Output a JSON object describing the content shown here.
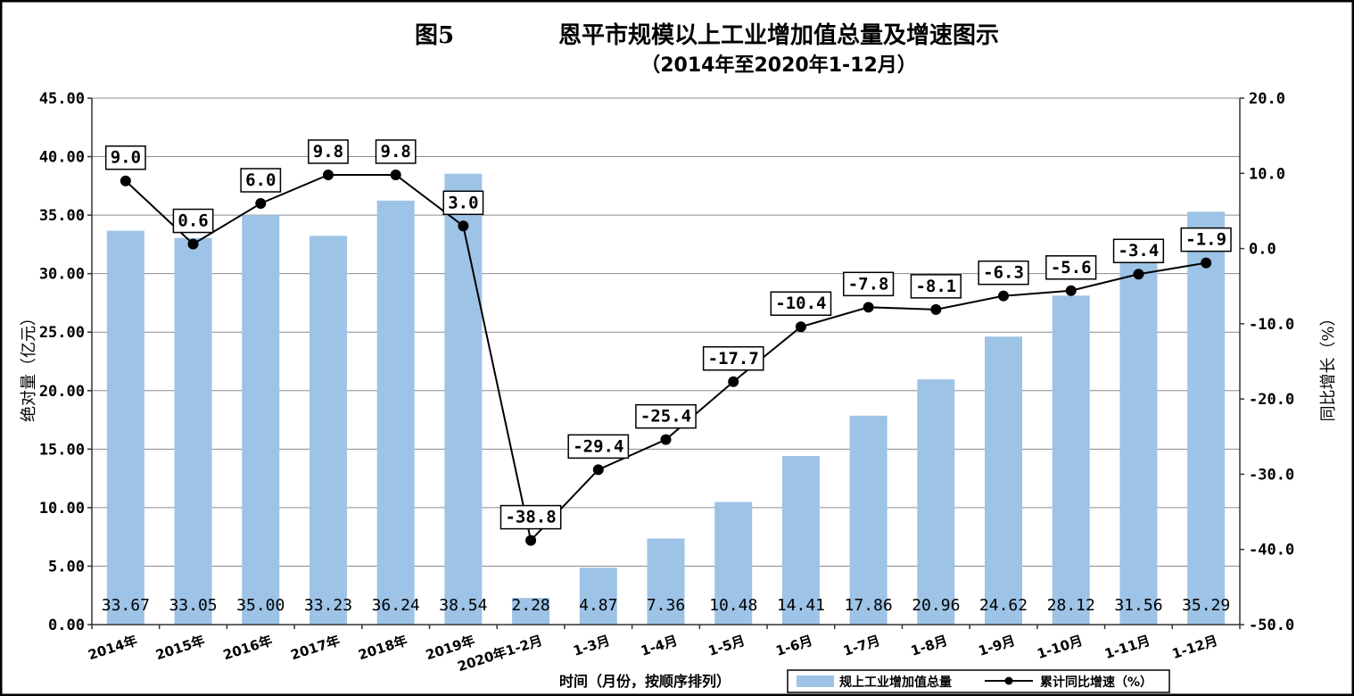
{
  "chart_data": {
    "type": "bar",
    "title": "图5",
    "subtitle_main": "恩平市规模以上工业增加值总量及增速图示",
    "subtitle_period": "（2014年至2020年1-12月）",
    "xlabel": "时间（月份，按顺序排列）",
    "ylabel": "绝对量（亿元）",
    "y2label": "同比增长（%）",
    "ylim": [
      0,
      45
    ],
    "y2lim": [
      -50,
      20
    ],
    "y_ticks": [
      "0.00",
      "5.00",
      "10.00",
      "15.00",
      "20.00",
      "25.00",
      "30.00",
      "35.00",
      "40.00",
      "45.00"
    ],
    "y2_ticks": [
      "-50.0",
      "-40.0",
      "-30.0",
      "-20.0",
      "-10.0",
      "0.0",
      "10.0",
      "20.0"
    ],
    "categories": [
      "2014年",
      "2015年",
      "2016年",
      "2017年",
      "2018年",
      "2019年",
      "2020年1-2月",
      "1-3月",
      "1-4月",
      "1-5月",
      "1-6月",
      "1-7月",
      "1-8月",
      "1-9月",
      "1-10月",
      "1-11月",
      "1-12月"
    ],
    "series": [
      {
        "name": "规上工业增加值总量",
        "type": "bar",
        "axis": "left",
        "color": "#9dc3e6",
        "values": [
          33.67,
          33.05,
          35.0,
          33.23,
          36.24,
          38.54,
          2.28,
          4.87,
          7.36,
          10.48,
          14.41,
          17.86,
          20.96,
          24.62,
          28.12,
          31.56,
          35.29
        ],
        "labels": [
          "33.67",
          "33.05",
          "35.00",
          "33.23",
          "36.24",
          "38.54",
          "2.28",
          "4.87",
          "7.36",
          "10.48",
          "14.41",
          "17.86",
          "20.96",
          "24.62",
          "28.12",
          "31.56",
          "35.29"
        ]
      },
      {
        "name": "累计同比增速（%）",
        "type": "line",
        "axis": "right",
        "color": "#000000",
        "values": [
          9.0,
          0.6,
          6.0,
          9.8,
          9.8,
          3.0,
          -38.8,
          -29.4,
          -25.4,
          -17.7,
          -10.4,
          -7.8,
          -8.1,
          -6.3,
          -5.6,
          -3.4,
          -1.9
        ],
        "labels": [
          "9.0",
          "0.6",
          "6.0",
          "9.8",
          "9.8",
          "3.0",
          "-38.8",
          "-29.4",
          "-25.4",
          "-17.7",
          "-10.4",
          "-7.8",
          "-8.1",
          "-6.3",
          "-5.6",
          "-3.4",
          "-1.9"
        ]
      }
    ],
    "grid": true,
    "legend_position": "bottom-right"
  }
}
